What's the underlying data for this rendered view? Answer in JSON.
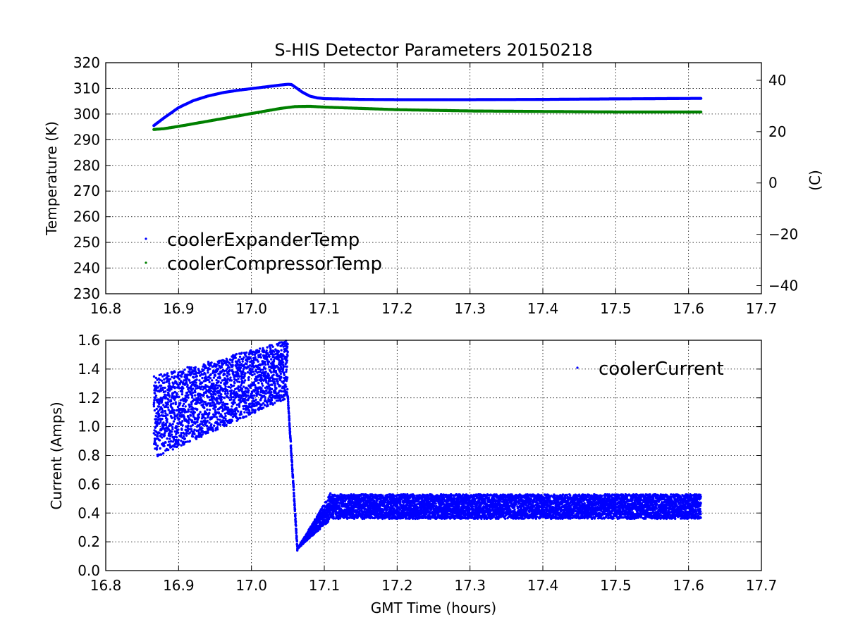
{
  "title": "S-HIS Detector Parameters 20150218",
  "colors": {
    "blue": "#0000ff",
    "green": "#008000"
  },
  "chart_data": [
    {
      "type": "scatter",
      "panel": "top",
      "xlabel": "",
      "ylabel": "Temperature (K)",
      "y2label": "(C)",
      "xlim": [
        16.8,
        17.7
      ],
      "ylim": [
        230,
        320
      ],
      "y2lim": [
        -43.15,
        46.85
      ],
      "xticks": [
        "16.8",
        "16.9",
        "17.0",
        "17.1",
        "17.2",
        "17.3",
        "17.4",
        "17.5",
        "17.6",
        "17.7"
      ],
      "yticks": [
        "230",
        "240",
        "250",
        "260",
        "270",
        "280",
        "290",
        "300",
        "310",
        "320"
      ],
      "y2ticks": [
        "−40",
        "−20",
        "0",
        "20",
        "40"
      ],
      "grid": true,
      "legend_position": "lower-left",
      "series": [
        {
          "name": "coolerExpanderTemp",
          "color": "#0000ff",
          "points": [
            [
              16.866,
              295.5
            ],
            [
              16.88,
              298.5
            ],
            [
              16.9,
              302.5
            ],
            [
              16.92,
              305.2
            ],
            [
              16.94,
              307.0
            ],
            [
              16.96,
              308.3
            ],
            [
              16.98,
              309.2
            ],
            [
              17.0,
              309.9
            ],
            [
              17.02,
              310.6
            ],
            [
              17.04,
              311.3
            ],
            [
              17.05,
              311.6
            ],
            [
              17.055,
              311.5
            ],
            [
              17.06,
              310.5
            ],
            [
              17.07,
              308.5
            ],
            [
              17.08,
              307.0
            ],
            [
              17.09,
              306.3
            ],
            [
              17.1,
              306.0
            ],
            [
              17.15,
              305.7
            ],
            [
              17.2,
              305.6
            ],
            [
              17.3,
              305.6
            ],
            [
              17.4,
              305.7
            ],
            [
              17.5,
              305.9
            ],
            [
              17.617,
              306.1
            ]
          ]
        },
        {
          "name": "coolerCompressorTemp",
          "color": "#008000",
          "points": [
            [
              16.866,
              294.0
            ],
            [
              16.88,
              294.3
            ],
            [
              16.9,
              295.2
            ],
            [
              16.92,
              296.2
            ],
            [
              16.94,
              297.2
            ],
            [
              16.96,
              298.2
            ],
            [
              16.98,
              299.2
            ],
            [
              17.0,
              300.2
            ],
            [
              17.02,
              301.2
            ],
            [
              17.04,
              302.2
            ],
            [
              17.06,
              302.9
            ],
            [
              17.08,
              303.0
            ],
            [
              17.1,
              302.7
            ],
            [
              17.15,
              302.2
            ],
            [
              17.2,
              301.7
            ],
            [
              17.3,
              301.2
            ],
            [
              17.4,
              301.0
            ],
            [
              17.5,
              300.8
            ],
            [
              17.617,
              300.8
            ]
          ]
        }
      ]
    },
    {
      "type": "scatter",
      "panel": "bottom",
      "xlabel": "GMT Time (hours)",
      "ylabel": "Current (Amps)",
      "xlim": [
        16.8,
        17.7
      ],
      "ylim": [
        0.0,
        1.6
      ],
      "xticks": [
        "16.8",
        "16.9",
        "17.0",
        "17.1",
        "17.2",
        "17.3",
        "17.4",
        "17.5",
        "17.6",
        "17.7"
      ],
      "yticks": [
        "0.0",
        "0.2",
        "0.4",
        "0.6",
        "0.8",
        "1.0",
        "1.2",
        "1.4",
        "1.6"
      ],
      "grid": true,
      "legend_position": "top-right",
      "series": [
        {
          "name": "coolerCurrent",
          "color": "#0000ff",
          "description_ranges": true,
          "segments": [
            {
              "x": [
                16.866,
                17.05
              ],
              "low_start": 0.78,
              "low_end": 1.2,
              "high_start": 1.35,
              "high_end": 1.6
            },
            {
              "x": [
                17.05,
                17.063
              ],
              "low_start": 1.2,
              "low_end": 0.15,
              "high_start": 1.2,
              "high_end": 0.15
            },
            {
              "x": [
                17.063,
                17.11
              ],
              "low_start": 0.15,
              "low_end": 0.36,
              "high_start": 0.15,
              "high_end": 0.55
            },
            {
              "x": [
                17.11,
                17.617
              ],
              "low_start": 0.36,
              "low_end": 0.36,
              "high_start": 0.53,
              "high_end": 0.53
            }
          ]
        }
      ]
    }
  ]
}
